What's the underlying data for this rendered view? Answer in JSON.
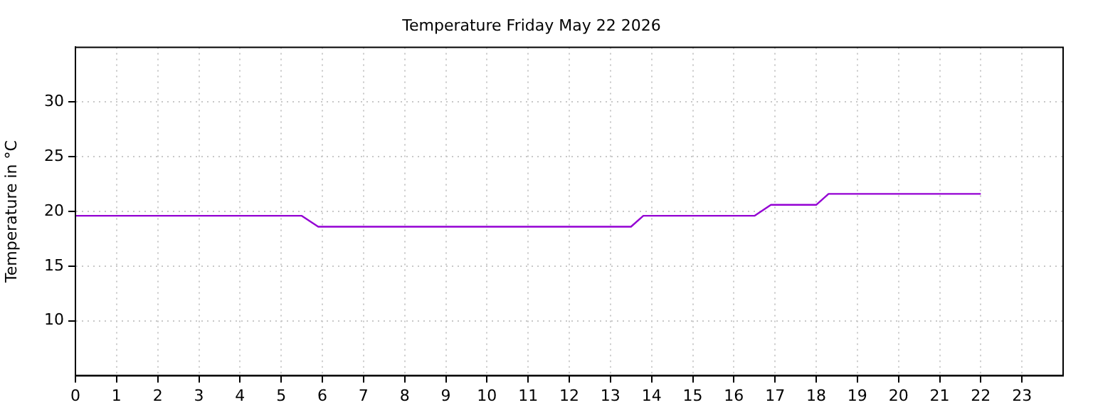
{
  "chart_data": {
    "type": "line",
    "title": "Temperature Friday May 22 2026",
    "ylabel": "Temperature in °C",
    "x": [
      0,
      5.5,
      5.9,
      13.5,
      13.8,
      16.5,
      16.9,
      18,
      18.3,
      22
    ],
    "series": [
      {
        "color": "#9400d3",
        "values": [
          19.6,
          19.6,
          18.6,
          18.6,
          19.6,
          19.6,
          20.6,
          20.6,
          21.6,
          21.6
        ]
      }
    ],
    "xlim": [
      0,
      24
    ],
    "xticks": [
      0,
      1,
      2,
      3,
      4,
      5,
      6,
      7,
      8,
      9,
      10,
      11,
      12,
      13,
      14,
      15,
      16,
      17,
      18,
      19,
      20,
      21,
      22,
      23
    ],
    "ylim": [
      5,
      35
    ],
    "yticks": [
      10,
      15,
      20,
      25,
      30
    ],
    "grid": true,
    "legend": false,
    "marker": "none",
    "line_style": "solid"
  }
}
